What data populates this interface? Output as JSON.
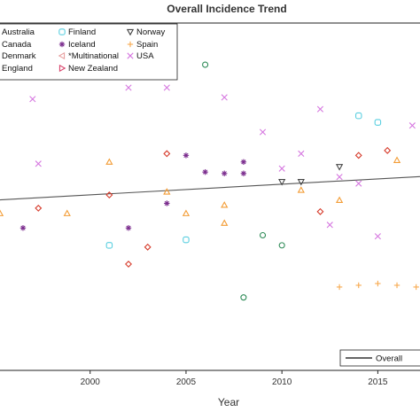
{
  "chart_data": {
    "type": "scatter",
    "title": "Overall Incidence Trend",
    "xlabel": "Year",
    "ylabel": "",
    "xlim": [
      1995.3,
      2017.2
    ],
    "ylim": [
      0,
      10
    ],
    "x_ticks": [
      "2000",
      "2005",
      "2010",
      "2015"
    ],
    "grid": false,
    "legend_position": "top-left",
    "fit_legend_label": "Overall",
    "trend_line": {
      "x": [
        1995.3,
        2017.2
      ],
      "y": [
        4.91,
        5.58
      ]
    },
    "series": [
      {
        "name": "Australia",
        "marker": "circle",
        "color": "#1a1a1a",
        "points": []
      },
      {
        "name": "Canada",
        "marker": "circle",
        "color": "#2e8b57",
        "points": [
          [
            2006.0,
            8.8
          ],
          [
            2009.0,
            3.89
          ],
          [
            2010.0,
            3.6
          ],
          [
            2008.0,
            2.1
          ]
        ]
      },
      {
        "name": "Denmark",
        "marker": "diamond",
        "color": "#d63a2a",
        "points": [
          [
            1997.3,
            4.67
          ],
          [
            2001.0,
            5.05
          ],
          [
            2004.0,
            6.24
          ],
          [
            2002.0,
            3.06
          ],
          [
            2012.0,
            4.57
          ],
          [
            2014.0,
            6.19
          ],
          [
            2015.5,
            6.33
          ],
          [
            2003.0,
            3.55
          ]
        ]
      },
      {
        "name": "England",
        "marker": "triangle-up",
        "color": "#f39c35",
        "points": [
          [
            1995.3,
            4.52
          ],
          [
            1998.8,
            4.52
          ],
          [
            2001.0,
            6.0
          ],
          [
            2004.0,
            5.14
          ],
          [
            2005.0,
            4.52
          ],
          [
            2007.0,
            4.76
          ],
          [
            2007.0,
            4.24
          ],
          [
            2011.0,
            5.19
          ],
          [
            2013.0,
            4.9
          ],
          [
            2016.0,
            6.05
          ]
        ]
      },
      {
        "name": "Finland",
        "marker": "square-rounded",
        "color": "#5bcfe0",
        "points": [
          [
            2001.0,
            3.6
          ],
          [
            2005.0,
            3.76
          ],
          [
            2014.0,
            7.33
          ],
          [
            2015.0,
            7.14
          ]
        ]
      },
      {
        "name": "Iceland",
        "marker": "asterisk",
        "color": "#7b2d8e",
        "points": [
          [
            1996.5,
            4.1
          ],
          [
            2002.0,
            4.1
          ],
          [
            2004.0,
            4.81
          ],
          [
            2005.0,
            6.19
          ],
          [
            2006.0,
            5.71
          ],
          [
            2007.0,
            5.67
          ],
          [
            2008.0,
            5.67
          ],
          [
            2008.0,
            6.0
          ]
        ]
      },
      {
        "name": "*Multinational",
        "marker": "triangle-left",
        "color": "#e8a0a0",
        "points": []
      },
      {
        "name": "New Zealand",
        "marker": "triangle-right",
        "color": "#d8456c",
        "points": []
      },
      {
        "name": "Norway",
        "marker": "triangle-down",
        "color": "#444444",
        "points": [
          [
            2010.0,
            5.43
          ],
          [
            2011.0,
            5.43
          ],
          [
            2013.0,
            5.86
          ]
        ]
      },
      {
        "name": "Spain",
        "marker": "plus",
        "color": "#f7a94e",
        "points": [
          [
            2013.0,
            2.4
          ],
          [
            2014.0,
            2.45
          ],
          [
            2015.0,
            2.5
          ],
          [
            2016.0,
            2.45
          ],
          [
            2017.0,
            2.4
          ]
        ]
      },
      {
        "name": "USA",
        "marker": "cross",
        "color": "#d678e0",
        "points": [
          [
            1997.3,
            5.95
          ],
          [
            1997.0,
            7.81
          ],
          [
            2002.0,
            8.14
          ],
          [
            2004.0,
            8.14
          ],
          [
            2007.0,
            7.86
          ],
          [
            2009.0,
            6.86
          ],
          [
            2010.0,
            5.81
          ],
          [
            2011.0,
            6.24
          ],
          [
            2012.0,
            7.52
          ],
          [
            2013.0,
            5.57
          ],
          [
            2015.0,
            3.86
          ],
          [
            2016.8,
            7.05
          ],
          [
            2014.0,
            5.38
          ],
          [
            2012.5,
            4.19
          ]
        ]
      }
    ]
  }
}
